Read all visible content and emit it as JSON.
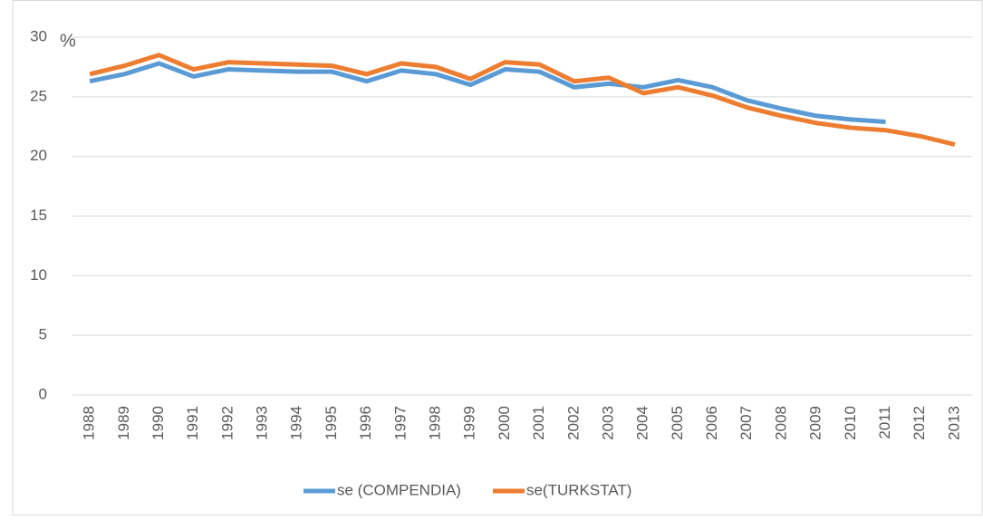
{
  "chart_data": {
    "type": "line",
    "y_label": "%",
    "categories": [
      "1988",
      "1989",
      "1990",
      "1991",
      "1992",
      "1993",
      "1994",
      "1995",
      "1996",
      "1997",
      "1998",
      "1999",
      "2000",
      "2001",
      "2002",
      "2003",
      "2004",
      "2005",
      "2006",
      "2007",
      "2008",
      "2009",
      "2010",
      "2011",
      "2012",
      "2013"
    ],
    "series": [
      {
        "name": "se (COMPENDIA)",
        "color": "#5b9bd5",
        "values": [
          26.3,
          26.9,
          27.8,
          26.7,
          27.3,
          27.2,
          27.1,
          27.1,
          26.3,
          27.2,
          26.9,
          26.0,
          27.3,
          27.1,
          25.8,
          26.1,
          25.8,
          26.4,
          25.8,
          24.7,
          24.0,
          23.4,
          23.1,
          22.9,
          null,
          null
        ]
      },
      {
        "name": "se(TURKSTAT)",
        "color": "#ed7d31",
        "values": [
          26.9,
          27.6,
          28.5,
          27.3,
          27.9,
          27.8,
          27.7,
          27.6,
          26.9,
          27.8,
          27.5,
          26.5,
          27.9,
          27.7,
          26.3,
          26.6,
          25.3,
          25.8,
          25.1,
          24.1,
          23.4,
          22.8,
          22.4,
          22.2,
          21.7,
          21.0
        ]
      }
    ],
    "ylim": [
      0,
      30
    ],
    "yticks": [
      0,
      5,
      10,
      15,
      20,
      25,
      30
    ],
    "grid": true,
    "legend": "bottom"
  }
}
